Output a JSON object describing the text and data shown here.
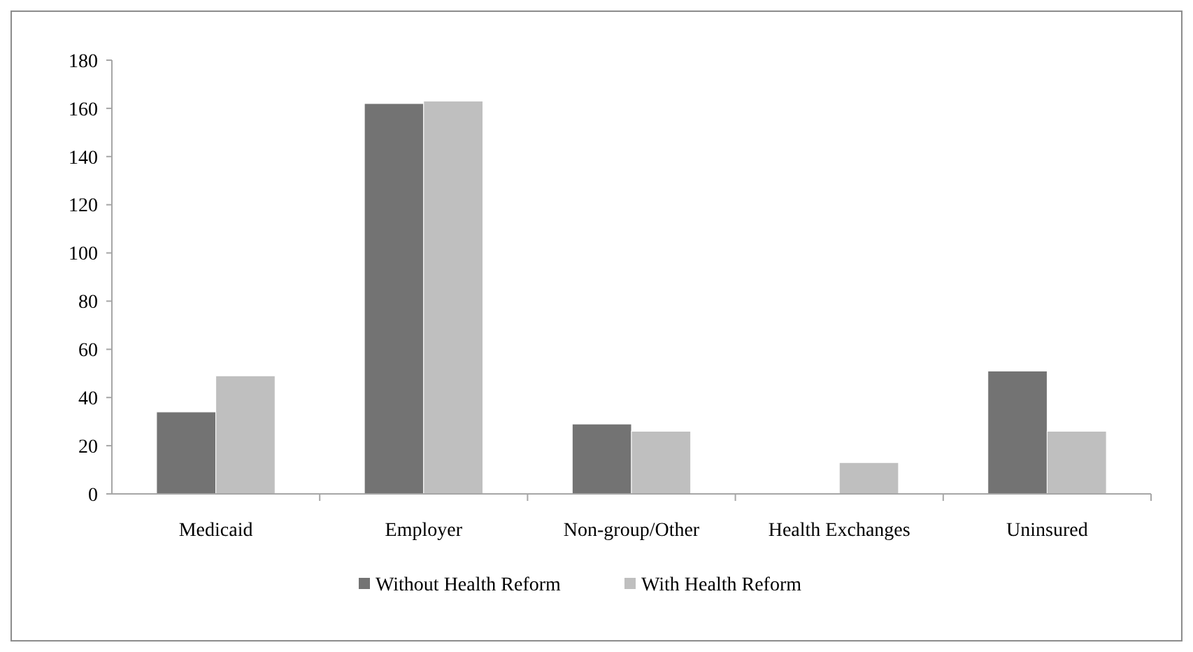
{
  "chart_data": {
    "type": "bar",
    "categories": [
      "Medicaid",
      "Employer",
      "Non-group/Other",
      "Health Exchanges",
      "Uninsured"
    ],
    "series": [
      {
        "name": "Without Health Reform",
        "color": "#737373",
        "values": [
          34,
          162,
          29,
          null,
          51
        ]
      },
      {
        "name": "With Health Reform",
        "color": "#bfbfbf",
        "values": [
          49,
          163,
          26,
          13,
          26
        ]
      }
    ],
    "ylim": [
      0,
      180
    ],
    "yticks": [
      0,
      20,
      40,
      60,
      80,
      100,
      120,
      140,
      160,
      180
    ],
    "grid": false,
    "legend": "bottom"
  }
}
